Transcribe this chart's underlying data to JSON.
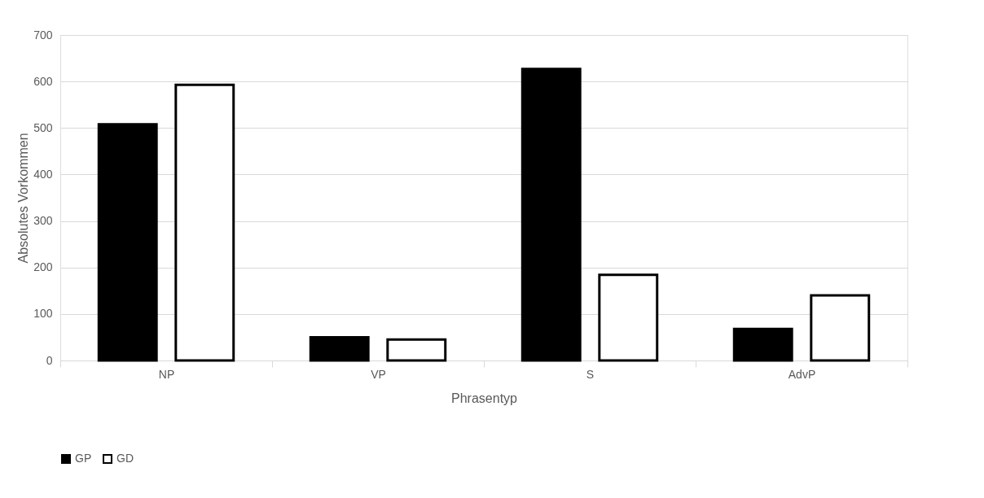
{
  "chart_data": {
    "type": "bar",
    "xlabel": "Phrasentyp",
    "ylabel": "Absolutes Vorkommen",
    "categories": [
      "NP",
      "VP",
      "S",
      "AdvP"
    ],
    "series": [
      {
        "name": "GP",
        "color": "#000000",
        "values": [
          508,
          50,
          627,
          68
        ]
      },
      {
        "name": "GD",
        "color": "#ffffff",
        "values": [
          593,
          45,
          184,
          140
        ]
      }
    ],
    "ylim": [
      0,
      700
    ],
    "yticks": [
      0,
      100,
      200,
      300,
      400,
      500,
      600,
      700
    ],
    "grid": "y",
    "legend": "bottom"
  }
}
